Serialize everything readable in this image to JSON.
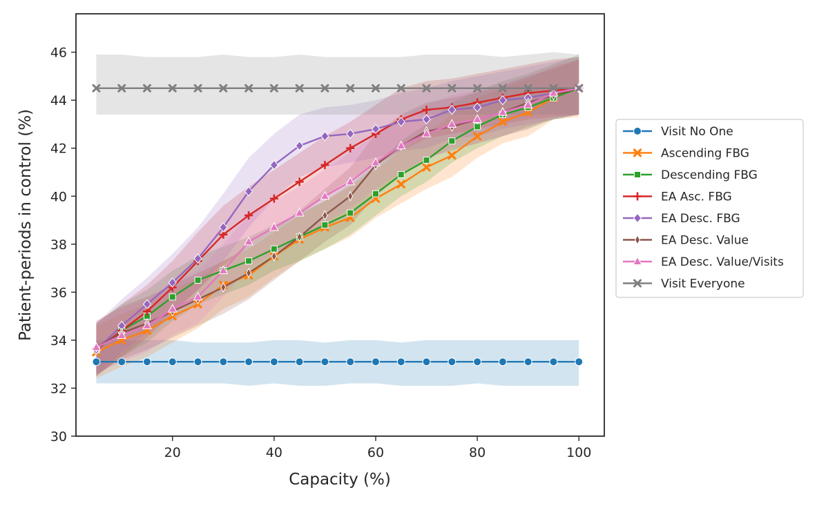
{
  "chart_data": {
    "type": "line",
    "title": "",
    "xlabel": "Capacity (%)",
    "ylabel": "Patient-periods in control (%)",
    "xlim": [
      1,
      105
    ],
    "ylim": [
      30,
      47.6
    ],
    "xticks": [
      20,
      40,
      60,
      80,
      100
    ],
    "yticks": [
      30,
      32,
      34,
      36,
      38,
      40,
      42,
      44,
      46
    ],
    "grid": false,
    "legend_position": "outside-right",
    "x": [
      5,
      10,
      15,
      20,
      25,
      30,
      35,
      40,
      45,
      50,
      55,
      60,
      65,
      70,
      75,
      80,
      85,
      90,
      95,
      100
    ],
    "series": [
      {
        "name": "Visit No One",
        "color": "#1f77b4",
        "marker": "circle",
        "values": [
          33.1,
          33.1,
          33.1,
          33.1,
          33.1,
          33.1,
          33.1,
          33.1,
          33.1,
          33.1,
          33.1,
          33.1,
          33.1,
          33.1,
          33.1,
          33.1,
          33.1,
          33.1,
          33.1,
          33.1
        ],
        "lower": [
          32.2,
          32.2,
          32.2,
          32.2,
          32.2,
          32.2,
          32.1,
          32.2,
          32.1,
          32.1,
          32.2,
          32.2,
          32.1,
          32.1,
          32.1,
          32.2,
          32.1,
          32.1,
          32.1,
          32.1
        ],
        "upper": [
          34.0,
          34.0,
          34.0,
          34.0,
          33.9,
          33.9,
          33.9,
          34.0,
          34.0,
          33.9,
          34.0,
          34.0,
          33.9,
          34.0,
          34.0,
          34.0,
          34.0,
          34.0,
          34.0,
          34.0
        ]
      },
      {
        "name": "Ascending FBG",
        "color": "#ff7f0e",
        "marker": "x",
        "values": [
          33.5,
          34.0,
          34.4,
          35.0,
          35.5,
          36.3,
          36.7,
          37.5,
          38.2,
          38.7,
          39.1,
          39.9,
          40.5,
          41.2,
          41.7,
          42.5,
          43.1,
          43.5,
          44.1,
          44.5
        ],
        "lower": [
          32.4,
          32.9,
          33.3,
          33.9,
          34.5,
          35.3,
          35.8,
          36.6,
          37.3,
          37.8,
          38.3,
          39.1,
          39.7,
          40.3,
          40.8,
          41.6,
          42.2,
          42.5,
          43.2,
          43.3
        ],
        "upper": [
          34.6,
          35.1,
          35.5,
          36.1,
          36.6,
          37.3,
          37.8,
          38.5,
          39.2,
          39.8,
          40.4,
          41.1,
          41.9,
          42.6,
          43.4,
          44.1,
          44.5,
          44.9,
          45.4,
          45.7
        ]
      },
      {
        "name": "Descending FBG",
        "color": "#2ca02c",
        "marker": "square",
        "values": [
          33.6,
          34.4,
          35.0,
          35.8,
          36.5,
          36.9,
          37.3,
          37.8,
          38.3,
          38.8,
          39.3,
          40.1,
          40.9,
          41.5,
          42.3,
          42.9,
          43.4,
          43.7,
          44.1,
          44.5
        ],
        "lower": [
          32.5,
          33.3,
          33.9,
          34.8,
          35.5,
          35.9,
          36.3,
          36.9,
          37.3,
          37.8,
          38.4,
          39.2,
          40.0,
          40.6,
          41.4,
          42.0,
          42.5,
          42.8,
          43.2,
          43.4
        ],
        "upper": [
          34.7,
          35.5,
          36.1,
          36.9,
          37.5,
          37.9,
          38.3,
          38.8,
          39.3,
          39.8,
          40.5,
          41.3,
          42.3,
          43.0,
          43.9,
          44.4,
          44.8,
          45.1,
          45.5,
          45.9
        ]
      },
      {
        "name": "EA Asc. FBG",
        "color": "#d62728",
        "marker": "plus",
        "values": [
          33.6,
          34.4,
          35.2,
          36.2,
          37.3,
          38.4,
          39.2,
          39.9,
          40.6,
          41.3,
          42.0,
          42.6,
          43.2,
          43.6,
          43.7,
          43.9,
          44.1,
          44.3,
          44.4,
          44.5
        ],
        "lower": [
          32.5,
          33.3,
          34.1,
          35.1,
          36.1,
          37.1,
          37.9,
          38.6,
          39.3,
          40.0,
          40.7,
          41.3,
          41.9,
          42.4,
          42.6,
          42.8,
          43.0,
          43.2,
          43.3,
          43.4
        ],
        "upper": [
          34.7,
          35.5,
          36.3,
          37.3,
          38.5,
          39.6,
          40.4,
          41.1,
          41.8,
          42.5,
          43.1,
          43.8,
          44.5,
          44.8,
          44.9,
          45.1,
          45.3,
          45.5,
          45.7,
          45.8
        ]
      },
      {
        "name": "EA Desc. FBG",
        "color": "#9467bd",
        "marker": "diamond",
        "values": [
          33.6,
          34.6,
          35.5,
          36.4,
          37.4,
          38.7,
          40.2,
          41.3,
          42.1,
          42.5,
          42.6,
          42.8,
          43.1,
          43.2,
          43.6,
          43.7,
          44.0,
          44.1,
          44.3,
          44.5
        ],
        "lower": [
          32.5,
          33.5,
          34.3,
          35.2,
          36.1,
          37.3,
          38.7,
          39.9,
          40.8,
          41.2,
          41.4,
          41.6,
          41.9,
          42.0,
          42.4,
          42.5,
          42.8,
          43.0,
          43.2,
          43.4
        ],
        "upper": [
          34.7,
          35.7,
          36.6,
          37.6,
          38.7,
          40.1,
          41.6,
          42.6,
          43.4,
          43.7,
          43.8,
          44.0,
          44.3,
          44.5,
          44.8,
          45.0,
          45.2,
          45.4,
          45.6,
          45.8
        ]
      },
      {
        "name": "EA Desc. Value",
        "color": "#8c564b",
        "marker": "thin_diamond",
        "values": [
          33.7,
          34.3,
          34.7,
          35.2,
          35.7,
          36.2,
          36.8,
          37.5,
          38.3,
          39.2,
          40.0,
          41.3,
          42.1,
          42.7,
          42.9,
          43.2,
          43.5,
          43.9,
          44.2,
          44.5
        ],
        "lower": [
          32.6,
          33.2,
          33.6,
          34.1,
          34.6,
          35.1,
          35.7,
          36.5,
          37.3,
          38.1,
          38.8,
          40.0,
          40.9,
          41.6,
          41.9,
          42.2,
          42.5,
          42.9,
          43.2,
          43.4
        ],
        "upper": [
          34.8,
          35.4,
          35.8,
          36.3,
          36.8,
          37.3,
          37.9,
          38.6,
          39.4,
          40.3,
          41.2,
          42.6,
          43.4,
          43.9,
          44.1,
          44.3,
          44.6,
          45.0,
          45.3,
          45.7
        ]
      },
      {
        "name": "EA Desc. Value/Visits",
        "color": "#e377c2",
        "marker": "triangle",
        "values": [
          33.7,
          34.2,
          34.6,
          35.3,
          35.8,
          36.9,
          38.1,
          38.7,
          39.3,
          40.0,
          40.6,
          41.4,
          42.1,
          42.6,
          43.0,
          43.2,
          43.5,
          43.8,
          44.3,
          44.5
        ],
        "lower": [
          32.6,
          33.1,
          33.5,
          34.2,
          34.7,
          35.8,
          37.0,
          37.6,
          38.2,
          38.9,
          39.5,
          40.3,
          41.0,
          41.5,
          42.0,
          42.2,
          42.5,
          42.8,
          43.3,
          43.4
        ],
        "upper": [
          34.8,
          35.3,
          35.7,
          36.4,
          36.9,
          38.0,
          39.2,
          39.8,
          40.4,
          41.1,
          41.8,
          42.6,
          43.3,
          43.8,
          44.2,
          44.4,
          44.7,
          45.0,
          45.4,
          45.7
        ]
      },
      {
        "name": "Visit Everyone",
        "color": "#7f7f7f",
        "marker": "x_filled",
        "values": [
          44.5,
          44.5,
          44.5,
          44.5,
          44.5,
          44.5,
          44.5,
          44.5,
          44.5,
          44.5,
          44.5,
          44.5,
          44.5,
          44.5,
          44.5,
          44.5,
          44.5,
          44.5,
          44.5,
          44.5
        ],
        "lower": [
          43.4,
          43.4,
          43.4,
          43.4,
          43.4,
          43.4,
          43.4,
          43.4,
          43.4,
          43.4,
          43.4,
          43.4,
          43.4,
          43.4,
          43.4,
          43.4,
          43.4,
          43.4,
          43.4,
          43.4
        ],
        "upper": [
          45.9,
          45.9,
          45.8,
          45.8,
          45.8,
          45.9,
          45.8,
          45.8,
          45.9,
          45.8,
          45.8,
          45.8,
          45.8,
          45.9,
          45.9,
          45.9,
          45.8,
          45.9,
          46.0,
          45.9
        ]
      }
    ]
  }
}
